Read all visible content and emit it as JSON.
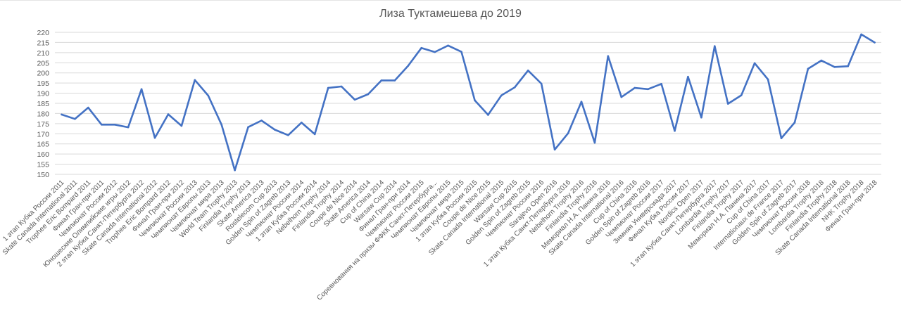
{
  "chart_data": {
    "type": "line",
    "title": "Лиза Туктамешева до 2019",
    "xlabel": "",
    "ylabel": "",
    "ylim": [
      150,
      220
    ],
    "y_ticks": [
      150,
      155,
      160,
      165,
      170,
      175,
      180,
      185,
      190,
      195,
      200,
      205,
      210,
      215,
      220
    ],
    "grid": true,
    "legend": "none",
    "line_color": "#4472c4",
    "categories": [
      "1 этап Кубка России 2011",
      "Skate Canada International 2011",
      "Trophee Eric Bompard 2011",
      "Финал Гран-при 2011",
      "Чемпионат России 2012",
      "Юношеские Олимпийские игры 2012",
      "2 этап Кубка Санкт-Петербурга 2012",
      "Skate Canada International 2012",
      "Trophee Eric Bompard 2012",
      "Финал Гран-при 2012",
      "Чемпионат России 2013",
      "Чемпионат Европы 2013",
      "Чемпионат мира 2013",
      "World Team Trophy 2013",
      "Finlandia Trophy 2013",
      "Skate America 2013",
      "Rostelecom Cup 2013",
      "Golden Spin of Zagreb 2013",
      "Чемпионат России 2014",
      "1 этап Кубка России 2014",
      "Nebelhorn Trophy 2014",
      "Finlandia Trophy 2014",
      "Coupe de Nice 2014",
      "Skate America 2014",
      "Cup of China 2014",
      "Warsaw Cup 2014",
      "Финал Гран-при 2014",
      "Чемпионат России 2015",
      "Соревнования на призы ФФКК Санкт-Петербурга...",
      "Чемпионат Европы 2015",
      "Чемпионат мира 2015",
      "1 этап Кубка России 2015",
      "Coupe de Nice 2015",
      "Skate Canada International 2015",
      "Warsaw Cup 2015",
      "Golden Spin of Zagreb 2015",
      "Чемпионат России 2016",
      "Sarajevo Open 2016",
      "1 этап Кубка Санкт-Петербурга 2016",
      "Nebelhorn Trophy 2016",
      "Finlandia Trophy 2016",
      "Мемориал Н.А. Панина 2016",
      "Skate Canada International 2016",
      "Cup of China 2016",
      "Golden Spin of Zagreb 2016",
      "Чемпионат России 2017",
      "Зимняя Универсиада 2017",
      "Финал Кубка России 2017",
      "Nordics Open 2017",
      "1 этап Кубка Санкт-Петербурга 2017",
      "Lombardia Trophy 2017",
      "Finlandia Trophy 2017",
      "Мемориал Н.А. Панина 2017",
      "Cup of China 2017",
      "Internationaux de France 2017",
      "Golden Spin of Zagreb 2017",
      "Чемпионат России 2018",
      "Lombardia Trophy 2018",
      "Finlandia Trophy 2018",
      "Skate Canada International 2018",
      "NHK Trophy 2018",
      "Финал Гран-при 2018"
    ],
    "values": [
      179.5,
      177.3,
      182.9,
      174.5,
      174.5,
      173.2,
      192.0,
      168.0,
      179.6,
      173.9,
      196.5,
      188.8,
      174.5,
      152.0,
      173.3,
      176.5,
      172.0,
      169.3,
      175.5,
      169.8,
      192.6,
      193.3,
      186.8,
      189.5,
      196.3,
      196.3,
      203.5,
      212.3,
      210.3,
      213.5,
      210.4,
      186.5,
      179.3,
      188.9,
      192.9,
      201.2,
      194.7,
      162.2,
      170.2,
      185.8,
      165.6,
      208.3,
      188.1,
      192.6,
      192.0,
      194.6,
      171.4,
      198.1,
      178.0,
      213.2,
      184.8,
      189.0,
      204.8,
      196.8,
      167.8,
      175.5,
      202.0,
      206.1,
      202.9,
      203.3,
      219.0,
      215.0
    ]
  }
}
